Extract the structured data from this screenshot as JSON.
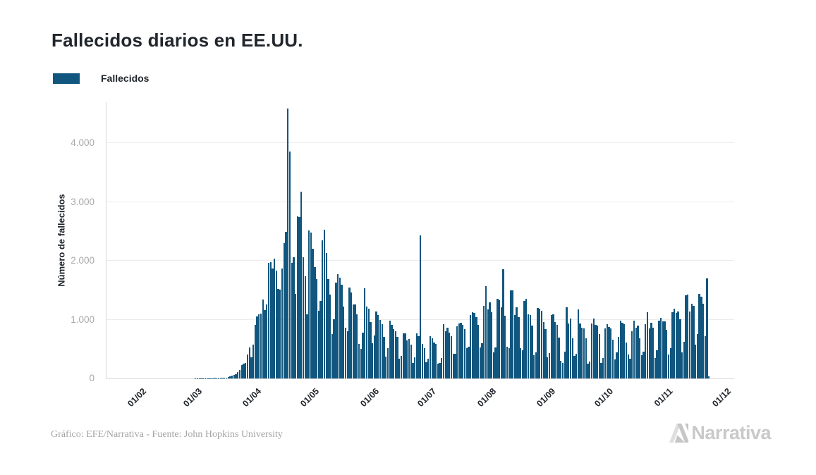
{
  "header": {
    "title": "Fallecidos diarios en EE.UU."
  },
  "legend": {
    "label": "Fallecidos"
  },
  "chart_data": {
    "type": "bar",
    "title": "Fallecidos diarios en EE.UU.",
    "ylabel": "Número de fallecidos",
    "xlabel": "",
    "grid": true,
    "legend_position": "top-left",
    "bar_color": "#11567e",
    "ylim": [
      0,
      4700
    ],
    "y_tick_labels": [
      "0",
      "1.000",
      "2.000",
      "3.000",
      "4.000"
    ],
    "x_tick_labels": [
      "01/02",
      "01/03",
      "01/04",
      "01/05",
      "01/06",
      "01/07",
      "01/08",
      "01/09",
      "01/10",
      "01/11",
      "01/12"
    ],
    "series": [
      {
        "name": "Fallecidos",
        "start_date": "2020-02-01",
        "frequency": "daily",
        "values": [
          0,
          0,
          0,
          0,
          0,
          0,
          0,
          0,
          0,
          0,
          0,
          0,
          0,
          0,
          0,
          0,
          0,
          0,
          0,
          0,
          0,
          0,
          0,
          0,
          0,
          0,
          0,
          0,
          1,
          1,
          1,
          4,
          3,
          2,
          3,
          4,
          3,
          4,
          8,
          4,
          7,
          9,
          11,
          13,
          18,
          26,
          42,
          50,
          59,
          68,
          113,
          140,
          225,
          247,
          268,
          411,
          525,
          363,
          573,
          912,
          1059,
          1094,
          1104,
          1344,
          1166,
          1255,
          1970,
          1973,
          1867,
          2035,
          1830,
          1528,
          1509,
          1869,
          2299,
          2494,
          4591,
          3857,
          1961,
          2061,
          1433,
          2763,
          2743,
          3179,
          2065,
          1743,
          1087,
          2522,
          2480,
          2201,
          1895,
          1691,
          1154,
          1324,
          2350,
          2528,
          2129,
          1687,
          1422,
          750,
          1008,
          1630,
          1772,
          1715,
          1595,
          1218,
          865,
          808,
          1552,
          1461,
          1263,
          1260,
          1092,
          592,
          505,
          774,
          1535,
          1223,
          1193,
          960,
          605,
          730,
          1134,
          1083,
          995,
          921,
          709,
          373,
          510,
          979,
          906,
          843,
          802,
          710,
          330,
          389,
          770,
          765,
          649,
          673,
          580,
          267,
          358,
          768,
          722,
          2437,
          590,
          512,
          271,
          335,
          724,
          682,
          613,
          585,
          254,
          264,
          351,
          926,
          802,
          862,
          782,
          716,
          420,
          417,
          893,
          941,
          943,
          908,
          843,
          511,
          534,
          1082,
          1126,
          1114,
          1046,
          911,
          528,
          594,
          1231,
          1570,
          1178,
          1300,
          1131,
          439,
          533,
          1356,
          1336,
          1211,
          1862,
          1064,
          541,
          515,
          1504,
          1499,
          1076,
          1211,
          1046,
          510,
          474,
          1324,
          1356,
          1090,
          1079,
          903,
          390,
          446,
          1205,
          1184,
          1148,
          958,
          842,
          363,
          432,
          1083,
          1090,
          957,
          907,
          695,
          298,
          267,
          459,
          1208,
          940,
          1016,
          688,
          387,
          421,
          1178,
          936,
          867,
          856,
          681,
          249,
          290,
          935,
          1024,
          911,
          904,
          753,
          269,
          344,
          847,
          925,
          870,
          848,
          664,
          320,
          443,
          712,
          984,
          950,
          923,
          611,
          404,
          337,
          805,
          987,
          860,
          904,
          689,
          390,
          455,
          925,
          1128,
          856,
          942,
          866,
          349,
          476,
          987,
          1030,
          966,
          967,
          826,
          405,
          520,
          1130,
          1187,
          1113,
          1135,
          1003,
          446,
          621,
          1420,
          1431,
          1141,
          1266,
          1241,
          571,
          756,
          1440,
          1390,
          1270,
          723,
          1705,
          35
        ]
      }
    ]
  },
  "footer": {
    "credit": "Gráfico: EFE/Narrativa - Fuente: John Hopkins University",
    "logo_text": "Narrativa"
  }
}
